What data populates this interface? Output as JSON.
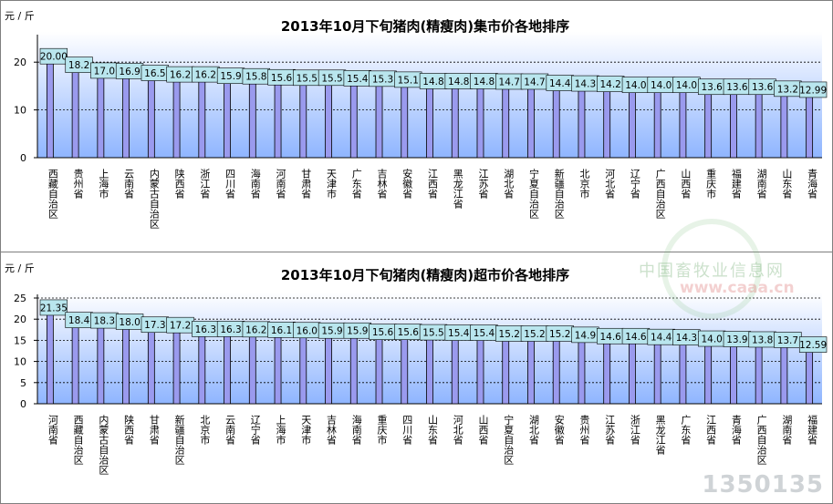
{
  "watermarks": {
    "logo_text": "中国畜牧业信息网",
    "logo_url": "www.caaa.cn",
    "corner": "1350135"
  },
  "chart_data": [
    {
      "type": "bar",
      "title": "2013年10月下旬猪肉(精瘦肉)集市价各地排序",
      "ylabel": "元 / 斤",
      "ylim": [
        0,
        25
      ],
      "yticks": [
        0,
        10,
        20
      ],
      "grid": true,
      "bar_color": "#9a9aee",
      "categories": [
        "西藏自治区",
        "贵州省",
        "上海市",
        "云南省",
        "内蒙古自治区",
        "陕西省",
        "浙江省",
        "四川省",
        "海南省",
        "河南省",
        "甘肃省",
        "天津市",
        "广东省",
        "吉林省",
        "安徽省",
        "江西省",
        "黑龙江省",
        "江苏省",
        "湖北省",
        "宁夏自治区",
        "新疆自治区",
        "北京市",
        "河北省",
        "辽宁省",
        "广西自治区",
        "山西省",
        "重庆市",
        "福建省",
        "湖南省",
        "山东省",
        "青海省"
      ],
      "values": [
        20.0,
        18.2,
        17.0,
        16.9,
        16.5,
        16.2,
        16.2,
        15.9,
        15.8,
        15.6,
        15.5,
        15.5,
        15.4,
        15.3,
        15.1,
        14.8,
        14.8,
        14.8,
        14.7,
        14.7,
        14.4,
        14.3,
        14.2,
        14.0,
        14.0,
        14.0,
        13.6,
        13.6,
        13.6,
        13.2,
        12.99
      ],
      "labels": [
        "20.00",
        "18.2",
        "17.0",
        "16.9",
        "16.5",
        "16.2",
        "16.2",
        "15.9",
        "15.8",
        "15.6",
        "15.5",
        "15.5",
        "15.4",
        "15.3",
        "15.1",
        "14.8",
        "14.8",
        "14.8",
        "14.7",
        "14.7",
        "14.4",
        "14.3",
        "14.2",
        "14.0",
        "14.0",
        "14.0",
        "13.6",
        "13.6",
        "13.6",
        "13.2",
        "12.99"
      ]
    },
    {
      "type": "bar",
      "title": "2013年10月下旬猪肉(精瘦肉)超市价各地排序",
      "ylabel": "元 / 斤",
      "ylim": [
        0,
        25
      ],
      "yticks": [
        0,
        5,
        10,
        15,
        20,
        25
      ],
      "grid": true,
      "bar_color": "#9a9aee",
      "categories": [
        "河南省",
        "西藏自治区",
        "内蒙古自治区",
        "陕西省",
        "甘肃省",
        "新疆自治区",
        "北京市",
        "云南省",
        "辽宁省",
        "上海市",
        "天津市",
        "吉林省",
        "海南省",
        "重庆市",
        "四川省",
        "山东省",
        "河北省",
        "山西省",
        "宁夏自治区",
        "湖北省",
        "安徽省",
        "贵州省",
        "江苏省",
        "浙江省",
        "黑龙江省",
        "广东省",
        "江西省",
        "青海省",
        "广西自治区",
        "湖南省",
        "福建省"
      ],
      "values": [
        21.35,
        18.4,
        18.3,
        18.0,
        17.3,
        17.2,
        16.3,
        16.3,
        16.2,
        16.1,
        16.0,
        15.9,
        15.9,
        15.6,
        15.6,
        15.5,
        15.4,
        15.4,
        15.2,
        15.2,
        15.2,
        14.9,
        14.6,
        14.6,
        14.4,
        14.3,
        14.0,
        13.9,
        13.8,
        13.7,
        12.59
      ],
      "labels": [
        "21.35",
        "18.4",
        "18.3",
        "18.0",
        "17.3",
        "17.2",
        "16.3",
        "16.3",
        "16.2",
        "16.1",
        "16.0",
        "15.9",
        "15.9",
        "15.6",
        "15.6",
        "15.5",
        "15.4",
        "15.4",
        "15.2",
        "15.2",
        "15.2",
        "14.9",
        "14.6",
        "14.6",
        "14.4",
        "14.3",
        "14.0",
        "13.9",
        "13.8",
        "13.7",
        "12.59"
      ]
    }
  ]
}
